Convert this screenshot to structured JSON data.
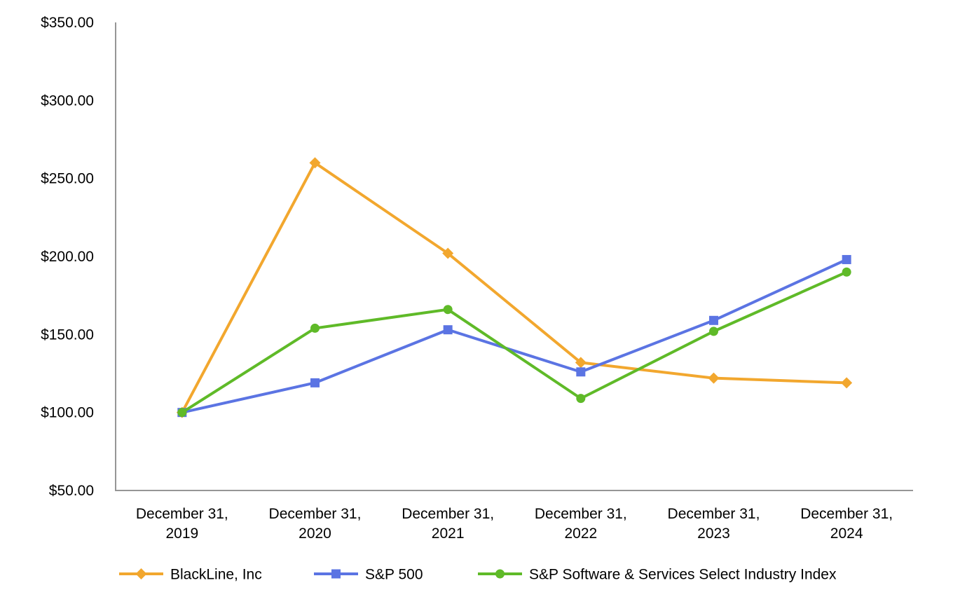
{
  "chart_data": {
    "type": "line",
    "title": "",
    "grid": false,
    "legend_position": "bottom",
    "axis_color": "#969696",
    "text_color": "#000000",
    "x_axis": {
      "categories": [
        {
          "line1": "December 31,",
          "line2": "2019"
        },
        {
          "line1": "December 31,",
          "line2": "2020"
        },
        {
          "line1": "December 31,",
          "line2": "2021"
        },
        {
          "line1": "December 31,",
          "line2": "2022"
        },
        {
          "line1": "December 31,",
          "line2": "2023"
        },
        {
          "line1": "December 31,",
          "line2": "2024"
        }
      ]
    },
    "y_axis": {
      "min": 50,
      "max": 350,
      "step": 50,
      "tick_values": [
        350,
        300,
        250,
        200,
        150,
        100,
        50
      ],
      "tick_labels": [
        "$350.00",
        "$300.00",
        "$250.00",
        "$200.00",
        "$150.00",
        "$100.00",
        "$50.00"
      ]
    },
    "series": [
      {
        "name": "BlackLine, Inc",
        "color": "#F2A72E",
        "marker": "diamond",
        "values": [
          100,
          260,
          202,
          132,
          122,
          119
        ]
      },
      {
        "name": "S&P 500",
        "color": "#5B74E3",
        "marker": "square",
        "values": [
          100,
          119,
          153,
          126,
          159,
          198
        ]
      },
      {
        "name": "S&P Software & Services Select Industry Index",
        "color": "#5FBA28",
        "marker": "circle",
        "values": [
          100,
          154,
          166,
          109,
          152,
          190
        ]
      }
    ]
  }
}
